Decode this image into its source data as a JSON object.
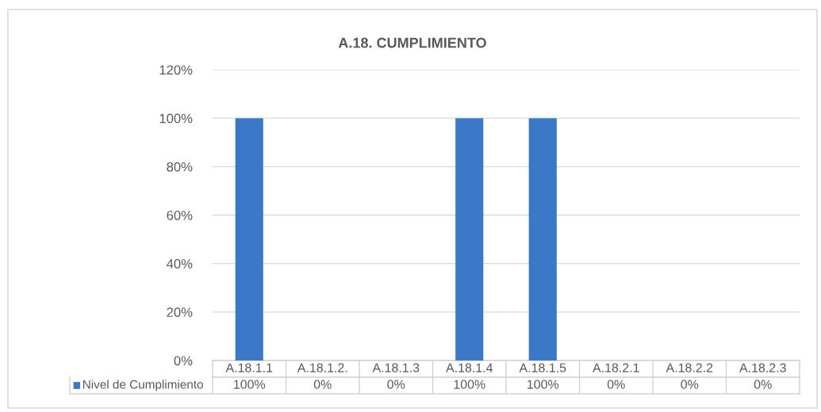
{
  "chart_data": {
    "type": "bar",
    "title": "A.18. CUMPLIMIENTO",
    "categories": [
      "A.18.1.1",
      "A.18.1.2.",
      "A.18.1.3",
      "A.18.1.4",
      "A.18.1.5",
      "A.18.2.1",
      "A.18.2.2",
      "A.18.2.3"
    ],
    "series": [
      {
        "name": "Nivel de Cumplimiento",
        "color": "#3b78c8",
        "values": [
          100,
          0,
          0,
          100,
          100,
          0,
          0,
          0
        ],
        "value_labels": [
          "100%",
          "0%",
          "0%",
          "100%",
          "100%",
          "0%",
          "0%",
          "0%"
        ]
      }
    ],
    "ylim": [
      0,
      120
    ],
    "yticks": [
      {
        "value": 0,
        "label": "0%"
      },
      {
        "value": 20,
        "label": "20%"
      },
      {
        "value": 40,
        "label": "40%"
      },
      {
        "value": 60,
        "label": "60%"
      },
      {
        "value": 80,
        "label": "80%"
      },
      {
        "value": 100,
        "label": "100%"
      },
      {
        "value": 120,
        "label": "120%"
      }
    ],
    "grid": "y",
    "legend": "bottom"
  }
}
